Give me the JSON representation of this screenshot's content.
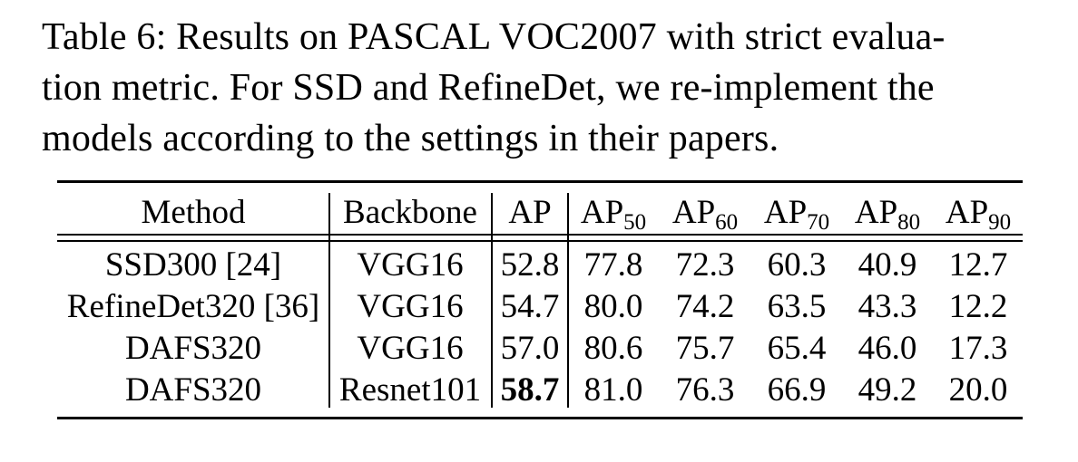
{
  "caption": {
    "lines": [
      "Table 6: Results on PASCAL VOC2007 with strict evalua-",
      "tion metric.  For SSD and RefineDet, we re-implement the",
      "models according to the settings in their papers."
    ]
  },
  "table": {
    "headers": {
      "method": "Method",
      "backbone": "Backbone",
      "ap": "AP",
      "ap50": {
        "base": "AP",
        "sub": "50"
      },
      "ap60": {
        "base": "AP",
        "sub": "60"
      },
      "ap70": {
        "base": "AP",
        "sub": "70"
      },
      "ap80": {
        "base": "AP",
        "sub": "80"
      },
      "ap90": {
        "base": "AP",
        "sub": "90"
      }
    },
    "rows": [
      {
        "method": "SSD300 [24]",
        "backbone": "VGG16",
        "ap": "52.8",
        "ap50": "77.8",
        "ap60": "72.3",
        "ap70": "60.3",
        "ap80": "40.9",
        "ap90": "12.7"
      },
      {
        "method": "RefineDet320 [36]",
        "backbone": "VGG16",
        "ap": "54.7",
        "ap50": "80.0",
        "ap60": "74.2",
        "ap70": "63.5",
        "ap80": "43.3",
        "ap90": "12.2"
      },
      {
        "method": "DAFS320",
        "backbone": "VGG16",
        "ap": "57.0",
        "ap50": "80.6",
        "ap60": "75.7",
        "ap70": "65.4",
        "ap80": "46.0",
        "ap90": "17.3"
      },
      {
        "method": "DAFS320",
        "backbone": "Resnet101",
        "ap": "58.7",
        "ap50": "81.0",
        "ap60": "76.3",
        "ap70": "66.9",
        "ap80": "49.2",
        "ap90": "20.0"
      }
    ],
    "bold_cells": [
      [
        3,
        "ap"
      ]
    ]
  }
}
